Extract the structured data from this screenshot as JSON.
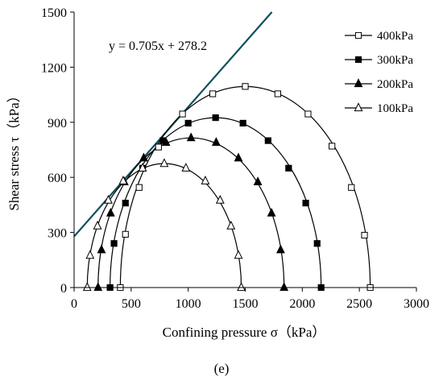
{
  "caption": "(e)",
  "chart_data": {
    "type": "scatter",
    "xlabel": "Confining pressure σ（kPa）",
    "ylabel": "Shear stress τ（kPa）",
    "xlim": [
      0,
      3000
    ],
    "ylim": [
      0,
      1500
    ],
    "xticks": [
      0,
      500,
      1000,
      1500,
      2000,
      2500,
      3000
    ],
    "yticks": [
      0,
      300,
      600,
      900,
      1200,
      1500
    ],
    "grid": false,
    "legend": "top-right",
    "series": [
      {
        "name": "400kPa",
        "marker": "square-open",
        "center": 1500,
        "radius": 1095,
        "x": [
          405,
          450,
          570,
          740,
          950,
          1215,
          1500,
          1785,
          2050,
          2260,
          2430,
          2545,
          2595
        ],
        "y": [
          0,
          290,
          545,
          765,
          945,
          1055,
          1095,
          1055,
          945,
          770,
          545,
          285,
          0
        ]
      },
      {
        "name": "300kPa",
        "marker": "square-filled",
        "center": 1240,
        "radius": 925,
        "x": [
          315,
          350,
          450,
          600,
          780,
          1000,
          1240,
          1480,
          1700,
          1880,
          2030,
          2130,
          2165
        ],
        "y": [
          0,
          240,
          460,
          650,
          800,
          895,
          925,
          895,
          800,
          650,
          460,
          240,
          0
        ]
      },
      {
        "name": "200kPa",
        "marker": "triangle-filled",
        "center": 1025,
        "radius": 815,
        "x": [
          210,
          240,
          320,
          440,
          610,
          805,
          1025,
          1245,
          1440,
          1610,
          1730,
          1810,
          1840
        ],
        "y": [
          0,
          205,
          405,
          575,
          705,
          790,
          815,
          790,
          705,
          575,
          405,
          205,
          0
        ]
      },
      {
        "name": "100kPa",
        "marker": "triangle-open",
        "center": 790,
        "radius": 675,
        "x": [
          115,
          140,
          205,
          300,
          430,
          600,
          790,
          980,
          1150,
          1280,
          1375,
          1440,
          1465
        ],
        "y": [
          0,
          175,
          335,
          475,
          580,
          650,
          675,
          650,
          580,
          475,
          335,
          175,
          0
        ]
      }
    ],
    "fit_line": {
      "equation": "y = 0.705x + 278.2",
      "slope": 0.705,
      "intercept": 278.2,
      "color": "#0b4f5c"
    }
  }
}
